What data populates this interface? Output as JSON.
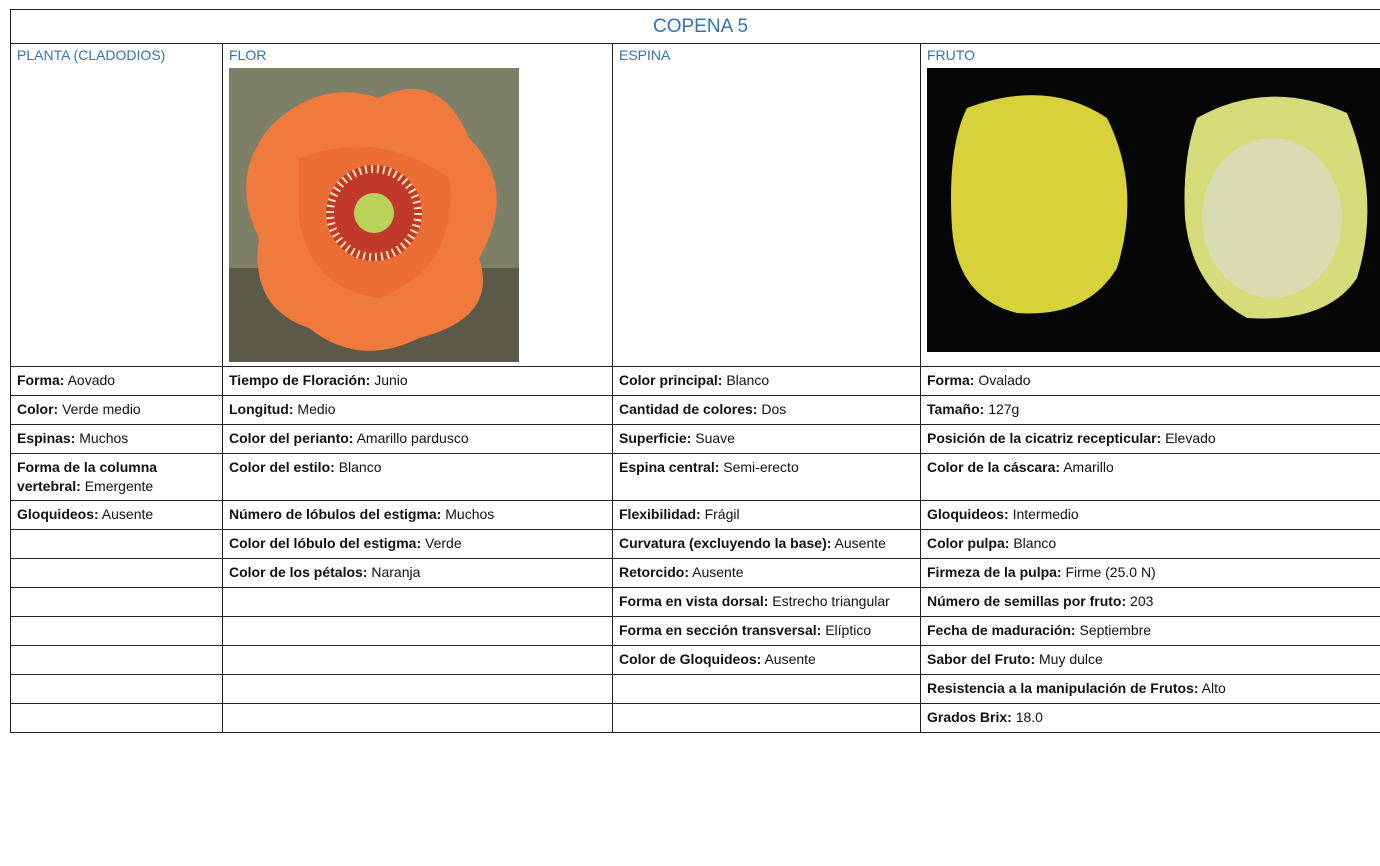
{
  "title": "COPENA 5",
  "columns": [
    {
      "header": "PLANTA (CLADODIOS)",
      "items": [
        {
          "label": "Forma:",
          "value": "Aovado"
        },
        {
          "label": "Color:",
          "value": "Verde medio"
        },
        {
          "label": "Espinas:",
          "value": "Muchos"
        },
        {
          "label": "Forma de la columna vertebral:",
          "value": "Emergente"
        },
        {
          "label": "Gloquideos:",
          "value": "Ausente"
        }
      ]
    },
    {
      "header": "FLOR",
      "items": [
        {
          "label": "Tiempo de Floración:",
          "value": "Junio"
        },
        {
          "label": "Longitud:",
          "value": "Medio"
        },
        {
          "label": "Color del perianto:",
          "value": "Amarillo pardusco"
        },
        {
          "label": "Color del estilo:",
          "value": "Blanco"
        },
        {
          "label": "Número de lóbulos del estigma:",
          "value": "Muchos"
        },
        {
          "label": "Color del lóbulo del estigma:",
          "value": "Verde"
        },
        {
          "label": "Color de los pétalos:",
          "value": "Naranja"
        }
      ]
    },
    {
      "header": "ESPINA",
      "items": [
        {
          "label": "Color principal:",
          "value": "Blanco"
        },
        {
          "label": "Cantidad de colores:",
          "value": "Dos"
        },
        {
          "label": "Superficie:",
          "value": "Suave"
        },
        {
          "label": "Espina central:",
          "value": "Semi-erecto"
        },
        {
          "label": "Flexibilidad:",
          "value": "Frágil"
        },
        {
          "label": "Curvatura (excluyendo la base):",
          "value": "Ausente"
        },
        {
          "label": "Retorcido:",
          "value": "Ausente"
        },
        {
          "label": "Forma en vista dorsal:",
          "value": "Estrecho triangular"
        },
        {
          "label": "Forma en sección transversal:",
          "value": "Elíptico"
        },
        {
          "label": "Color de Gloquideos:",
          "value": "Ausente"
        }
      ]
    },
    {
      "header": "FRUTO",
      "items": [
        {
          "label": "Forma:",
          "value": "Ovalado"
        },
        {
          "label": "Tamaño:",
          "value": "127g"
        },
        {
          "label": "Posición de la cicatriz recepticular:",
          "value": "Elevado"
        },
        {
          "label": "Color de la cáscara:",
          "value": "Amarillo"
        },
        {
          "label": "Gloquideos:",
          "value": "Intermedio"
        },
        {
          "label": "Color pulpa:",
          "value": "Blanco"
        },
        {
          "label": "Firmeza de la pulpa:",
          "value": "Firme (25.0 N)"
        },
        {
          "label": "Número de semillas por fruto:",
          "value": "203"
        },
        {
          "label": "Fecha de maduración:",
          "value": "Septiembre"
        },
        {
          "label": "Sabor del Fruto:",
          "value": "Muy dulce"
        },
        {
          "label": "Resistencia a la manipulación de Frutos:",
          "value": "Alto"
        },
        {
          "label": "Grados Brix:",
          "value": "18.0"
        }
      ]
    }
  ]
}
